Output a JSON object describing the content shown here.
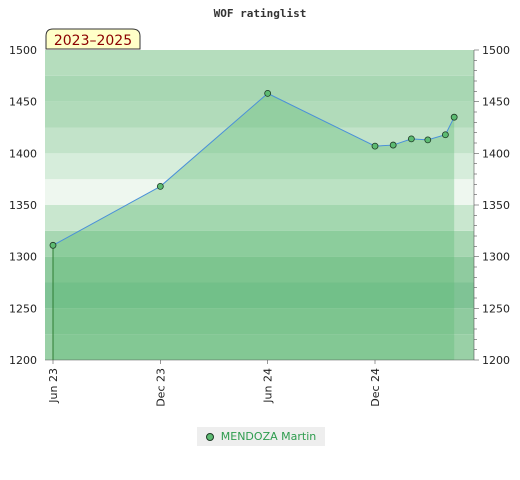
{
  "badge": "2023–2025",
  "chart_data": {
    "type": "area",
    "title": "WOF ratinglist",
    "xlabel": "",
    "ylabel": "",
    "ylim": [
      1200,
      1500
    ],
    "xlim": [
      "2023-06-01",
      "2025-04-01"
    ],
    "yticks": [
      1200,
      1250,
      1300,
      1350,
      1400,
      1450,
      1500
    ],
    "xticks": [
      {
        "label": "Jun 23",
        "date": "2023-06-01"
      },
      {
        "label": "Dec 23",
        "date": "2023-12-01"
      },
      {
        "label": "Jun 24",
        "date": "2024-06-01"
      },
      {
        "label": "Dec 24",
        "date": "2024-12-01"
      }
    ],
    "series": [
      {
        "name": "MENDOZA Martin",
        "color": "#5dbb72",
        "line_color": "#4a90d9",
        "points": [
          {
            "x": "2023-06-01",
            "y": 1311
          },
          {
            "x": "2023-12-01",
            "y": 1368
          },
          {
            "x": "2024-06-01",
            "y": 1458
          },
          {
            "x": "2024-12-01",
            "y": 1407
          },
          {
            "x": "2025-01-01",
            "y": 1408
          },
          {
            "x": "2025-02-01",
            "y": 1414
          },
          {
            "x": "2025-03-01",
            "y": 1413
          },
          {
            "x": "2025-03-31",
            "y": 1418
          },
          {
            "x": "2025-04-15",
            "y": 1435
          }
        ]
      }
    ],
    "grid": true,
    "legend": "bottom-center"
  }
}
